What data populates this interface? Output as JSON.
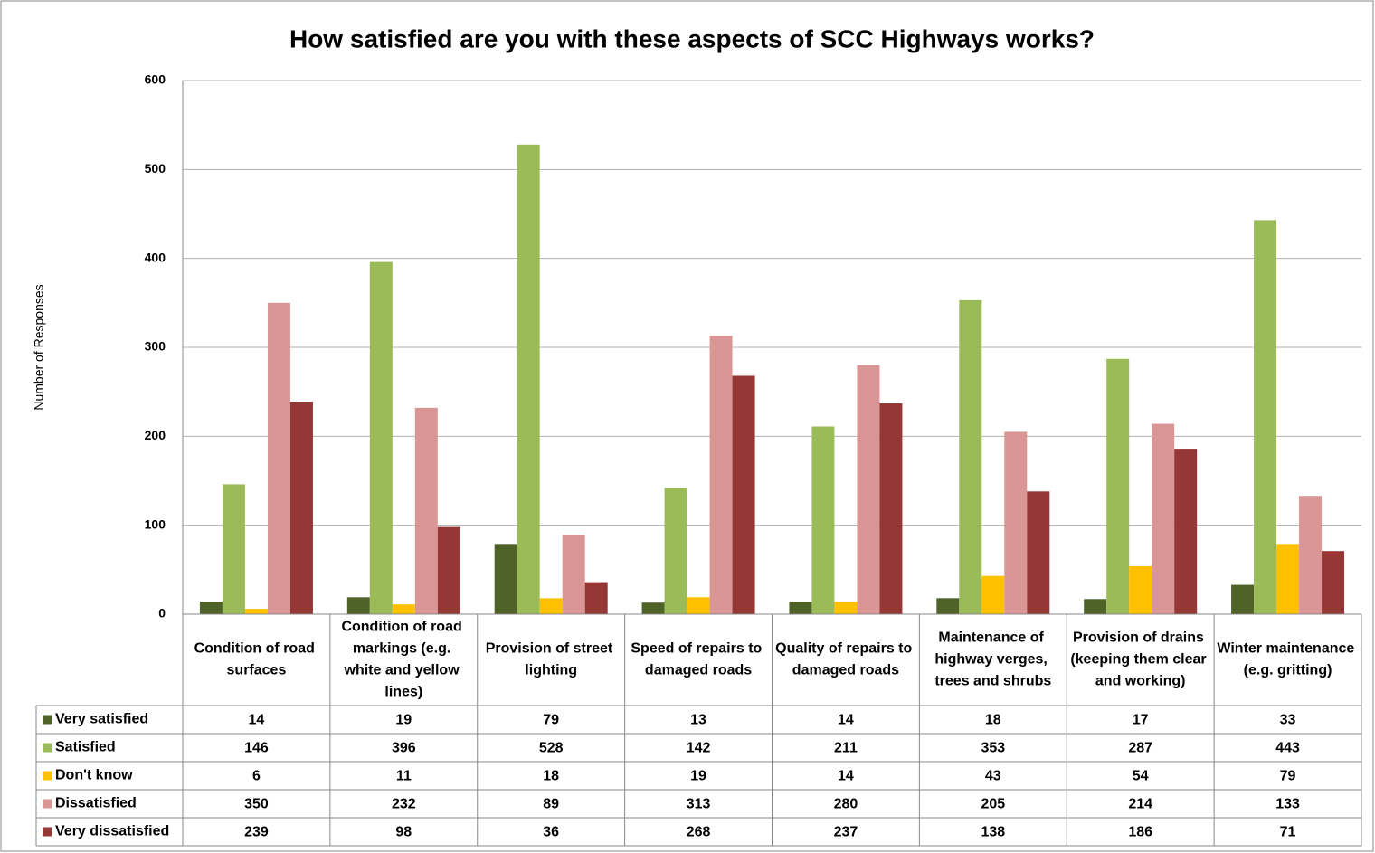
{
  "chart_data": {
    "type": "bar",
    "title": "How satisfied are you with these aspects of SCC Highways works?",
    "y_label": "Number of Responses",
    "categories": [
      "Condition of road surfaces",
      "Condition of road markings (e.g. white and yellow lines)",
      "Provision of street lighting",
      "Speed of repairs to damaged roads",
      "Quality of repairs to damaged roads",
      "Maintenance of highway verges, trees and shrubs",
      "Provision of drains (keeping them clear and working)",
      "Winter maintenance (e.g. gritting)"
    ],
    "series": [
      {
        "name": "Very satisfied",
        "color": "#4f6228",
        "values": [
          14,
          19,
          79,
          13,
          14,
          18,
          17,
          33
        ]
      },
      {
        "name": "Satisfied",
        "color": "#9bbb59",
        "values": [
          146,
          396,
          528,
          142,
          211,
          353,
          287,
          443
        ]
      },
      {
        "name": "Don't know",
        "color": "#ffc000",
        "values": [
          6,
          11,
          18,
          19,
          14,
          43,
          54,
          79
        ]
      },
      {
        "name": "Dissatisfied",
        "color": "#d99694",
        "values": [
          350,
          232,
          89,
          313,
          280,
          205,
          214,
          133
        ]
      },
      {
        "name": "Very dissatisfied",
        "color": "#953735",
        "values": [
          239,
          98,
          36,
          268,
          237,
          138,
          186,
          71
        ]
      }
    ],
    "ylim": [
      0,
      600
    ],
    "yticks": [
      0,
      100,
      200,
      300,
      400,
      500,
      600
    ],
    "grid": true,
    "data_table": true
  }
}
